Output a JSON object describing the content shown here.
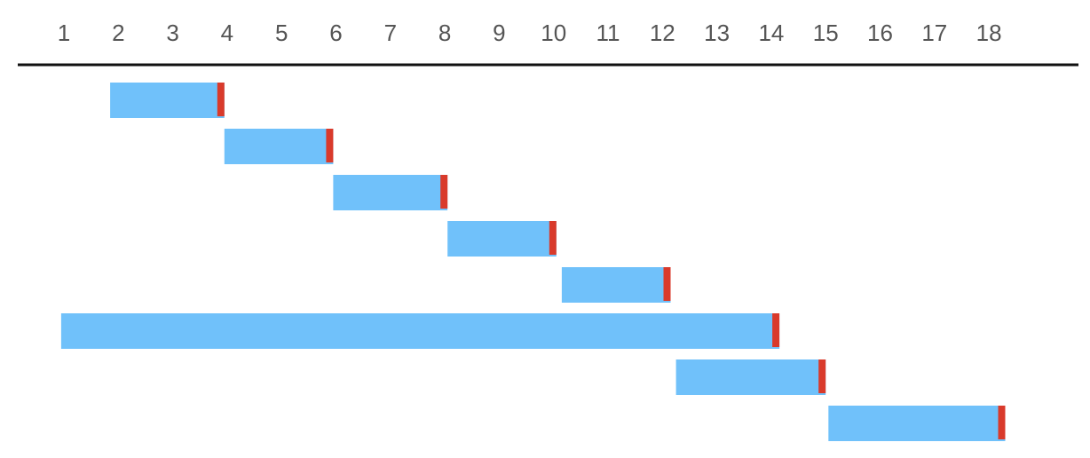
{
  "chart_data": {
    "type": "bar",
    "subtype": "gantt-timeline",
    "title": "",
    "xlabel": "",
    "ylabel": "",
    "x_ticks": [
      "1",
      "2",
      "3",
      "4",
      "5",
      "6",
      "7",
      "8",
      "9",
      "10",
      "11",
      "12",
      "13",
      "14",
      "15",
      "16",
      "17",
      "18"
    ],
    "xlim": [
      1,
      18
    ],
    "grid": false,
    "legend": "none",
    "tasks": [
      {
        "start": 1.85,
        "end": 3.95
      },
      {
        "start": 3.95,
        "end": 5.95
      },
      {
        "start": 5.95,
        "end": 8.05
      },
      {
        "start": 8.05,
        "end": 10.05
      },
      {
        "start": 10.15,
        "end": 12.15
      },
      {
        "start": 0.95,
        "end": 14.15
      },
      {
        "start": 12.25,
        "end": 15.0
      },
      {
        "start": 15.05,
        "end": 18.3
      }
    ],
    "colors": {
      "bar": "#70c1fa",
      "end_marker": "#d93a2b",
      "axis_line": "#111111",
      "tick_text": "#555555"
    }
  }
}
